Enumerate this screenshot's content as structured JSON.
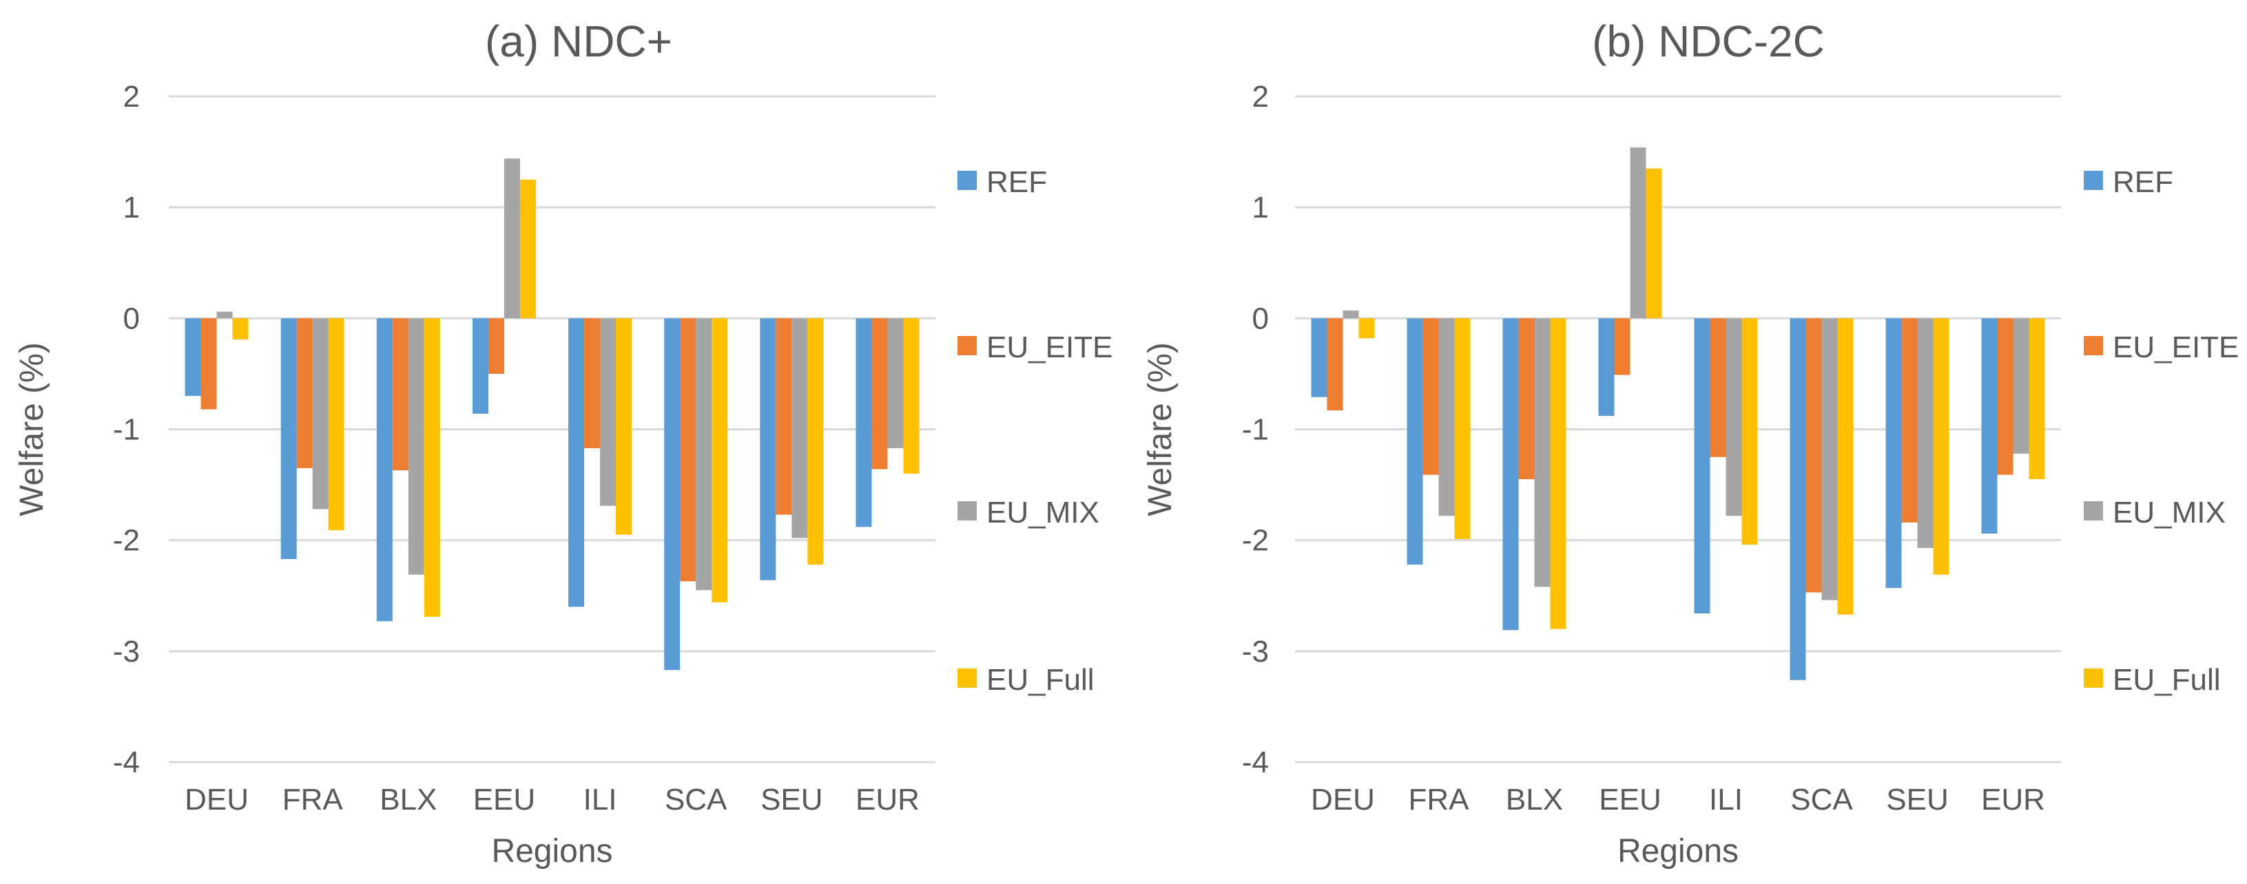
{
  "colors": {
    "REF": "#5b9bd5",
    "EU_EITE": "#ed7d31",
    "EU_MIX": "#a5a5a5",
    "EU_Full": "#ffc000",
    "text": "#595959",
    "grid": "#d9d9d9"
  },
  "chart_data": [
    {
      "type": "bar",
      "title": "(a) NDC+",
      "xlabel": "Regions",
      "ylabel": "Welfare (%)",
      "ylim": [
        -4,
        2
      ],
      "yticks": [
        2,
        1,
        0,
        -1,
        -2,
        -3,
        -4
      ],
      "grid": true,
      "legend_position": "right",
      "categories": [
        "DEU",
        "FRA",
        "BLX",
        "EEU",
        "ILI",
        "SCA",
        "SEU",
        "EUR"
      ],
      "series": [
        {
          "name": "REF",
          "values": [
            -0.7,
            -2.17,
            -2.73,
            -0.86,
            -2.6,
            -3.17,
            -2.36,
            -1.88
          ]
        },
        {
          "name": "EU_EITE",
          "values": [
            -0.82,
            -1.35,
            -1.37,
            -0.5,
            -1.17,
            -2.37,
            -1.77,
            -1.36
          ]
        },
        {
          "name": "EU_MIX",
          "values": [
            0.06,
            -1.72,
            -2.31,
            1.44,
            -1.69,
            -2.45,
            -1.98,
            -1.17
          ]
        },
        {
          "name": "EU_Full",
          "values": [
            -0.19,
            -1.91,
            -2.69,
            1.25,
            -1.95,
            -2.56,
            -2.22,
            -1.4
          ]
        }
      ]
    },
    {
      "type": "bar",
      "title": "(b) NDC-2C",
      "xlabel": "Regions",
      "ylabel": "Welfare (%)",
      "ylim": [
        -4,
        2
      ],
      "yticks": [
        2,
        1,
        0,
        -1,
        -2,
        -3,
        -4
      ],
      "grid": true,
      "legend_position": "right",
      "categories": [
        "DEU",
        "FRA",
        "BLX",
        "EEU",
        "ILI",
        "SCA",
        "SEU",
        "EUR"
      ],
      "series": [
        {
          "name": "REF",
          "values": [
            -0.71,
            -2.22,
            -2.81,
            -0.88,
            -2.66,
            -3.26,
            -2.43,
            -1.94
          ]
        },
        {
          "name": "EU_EITE",
          "values": [
            -0.83,
            -1.41,
            -1.45,
            -0.51,
            -1.25,
            -2.47,
            -1.84,
            -1.41
          ]
        },
        {
          "name": "EU_MIX",
          "values": [
            0.07,
            -1.78,
            -2.42,
            1.54,
            -1.78,
            -2.54,
            -2.07,
            -1.22
          ]
        },
        {
          "name": "EU_Full",
          "values": [
            -0.18,
            -1.99,
            -2.8,
            1.35,
            -2.04,
            -2.67,
            -2.31,
            -1.45
          ]
        }
      ]
    }
  ]
}
